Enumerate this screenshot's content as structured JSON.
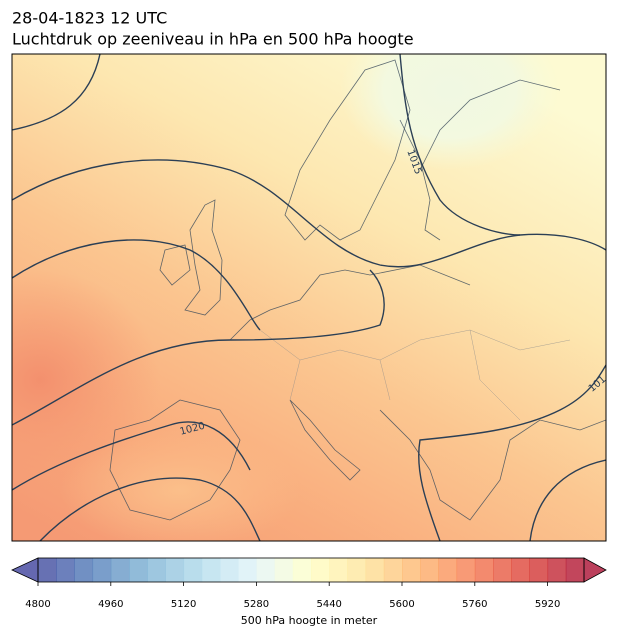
{
  "header": {
    "title_line1": "28-04-1823 12 UTC",
    "title_line2": "Luchtdruk op zeeniveau in hPa en 500 hPa hoogte"
  },
  "map": {
    "contour_labels": [
      "1015",
      "1020",
      "101"
    ]
  },
  "colorbar": {
    "label": "500 hPa hoogte in meter",
    "vmin": 4800,
    "vmax": 6000,
    "step": 40,
    "ticks": [
      4800,
      4960,
      5120,
      5280,
      5440,
      5600,
      5760,
      5920
    ],
    "colormap": [
      "#313695",
      "#4575b4",
      "#74add1",
      "#abd9e9",
      "#e0f3f8",
      "#ffffbf",
      "#fee090",
      "#fdae61",
      "#f46d43",
      "#d73027",
      "#a50026"
    ],
    "extend": "both"
  }
}
